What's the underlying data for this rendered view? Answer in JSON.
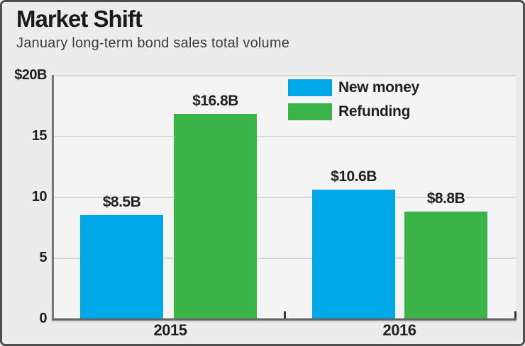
{
  "header": {
    "title": "Market Shift",
    "subtitle": "January long-term bond sales total volume"
  },
  "legend": {
    "items": [
      {
        "label": "New money",
        "color": "#00a8e8"
      },
      {
        "label": "Refunding",
        "color": "#3bb54a"
      }
    ]
  },
  "colors": {
    "new_money": "#00a8e8",
    "refunding": "#3bb54a",
    "background": "#ececec",
    "plot_background": "#f4f4f5",
    "gridline": "#d9d9da",
    "axis": "#636466",
    "text": "#231f20"
  },
  "chart_data": {
    "type": "bar",
    "title": "Market Shift",
    "subtitle": "January long-term bond sales total volume",
    "categories": [
      "2015",
      "2016"
    ],
    "series": [
      {
        "name": "New money",
        "color": "#00a8e8",
        "values": [
          8.5,
          10.6
        ],
        "value_labels": [
          "$8.5B",
          "$10.6B"
        ]
      },
      {
        "name": "Refunding",
        "color": "#3bb54a",
        "values": [
          16.8,
          8.8
        ],
        "value_labels": [
          "$16.8B",
          "$8.8B"
        ]
      }
    ],
    "xlabel": "",
    "ylabel": "",
    "ylim": [
      0,
      20
    ],
    "yticks": [
      {
        "value": 20,
        "label": "$20B"
      },
      {
        "value": 15,
        "label": "15"
      },
      {
        "value": 10,
        "label": "10"
      },
      {
        "value": 5,
        "label": "5"
      },
      {
        "value": 0,
        "label": "0"
      }
    ],
    "grid": true,
    "legend_position": "top-right-inside"
  }
}
